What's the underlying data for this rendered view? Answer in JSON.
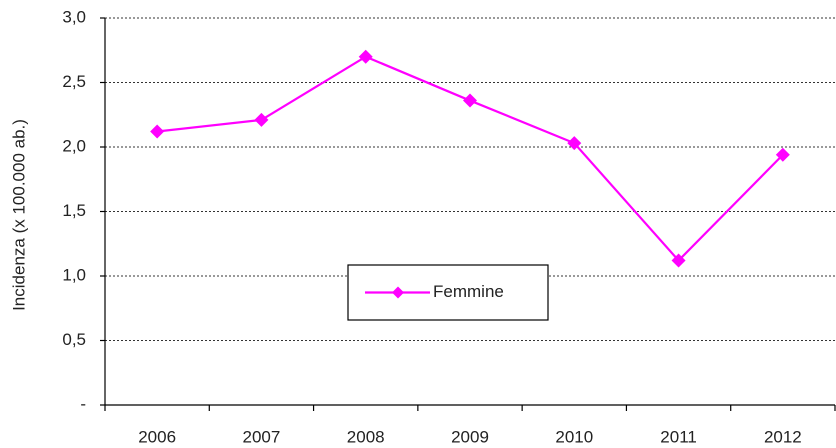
{
  "chart_data": {
    "type": "line",
    "y_label": "Incidenza (x 100.000 ab.)",
    "categories": [
      "2006",
      "2007",
      "2008",
      "2009",
      "2010",
      "2011",
      "2012"
    ],
    "series": [
      {
        "name": "Femmine",
        "color": "#ff00ff",
        "values": [
          2.12,
          2.21,
          2.7,
          2.36,
          2.03,
          1.12,
          1.94
        ]
      }
    ],
    "ylim": [
      0,
      3
    ],
    "yticks": [
      {
        "value": 0,
        "label": "-"
      },
      {
        "value": 0.5,
        "label": "0,5"
      },
      {
        "value": 1,
        "label": "1,0"
      },
      {
        "value": 1.5,
        "label": "1,5"
      },
      {
        "value": 2,
        "label": "2,0"
      },
      {
        "value": 2.5,
        "label": "2,5"
      },
      {
        "value": 3,
        "label": "3,0"
      }
    ],
    "grid": true,
    "legend": "center"
  }
}
